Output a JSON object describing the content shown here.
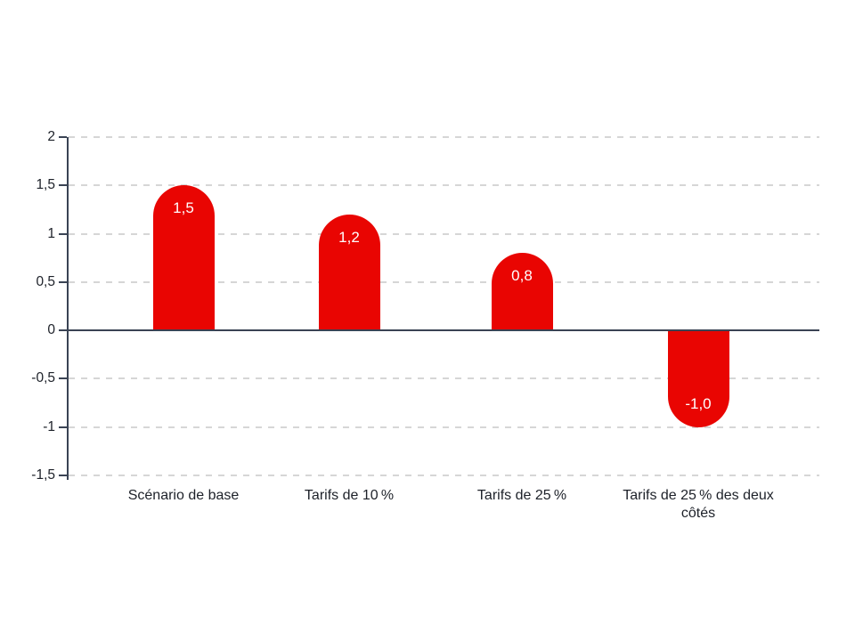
{
  "chart_data": {
    "type": "bar",
    "title": "",
    "categories": [
      "Scénario de base",
      "Tarifs de 10 %",
      "Tarifs de 25 %",
      "Tarifs de 25 % des deux côtés"
    ],
    "values": [
      1.5,
      1.2,
      0.8,
      -1.0
    ],
    "value_labels": [
      "1,5",
      "1,2",
      "0,8",
      "-1,0"
    ],
    "xlabel": "",
    "ylabel": "",
    "ylim": [
      -1.5,
      2
    ],
    "yticks": [
      2,
      1.5,
      1,
      0.5,
      0,
      -0.5,
      -1,
      -1.5
    ],
    "ytick_labels": [
      "2",
      "1,5",
      "1",
      "0,5",
      "0",
      "-0,5",
      "-1",
      "-1,5"
    ],
    "grid": "horizontal-dashed",
    "legend_position": "none",
    "bar_shape": "rounded-end-cap",
    "colors": {
      "bar": "#e90502",
      "axis": "#3a4354",
      "gridline": "#d6d6d6",
      "tick_text": "#1d2129",
      "category_text": "#1d2129",
      "value_text": "#ffffff",
      "background": "#ffffff"
    }
  }
}
